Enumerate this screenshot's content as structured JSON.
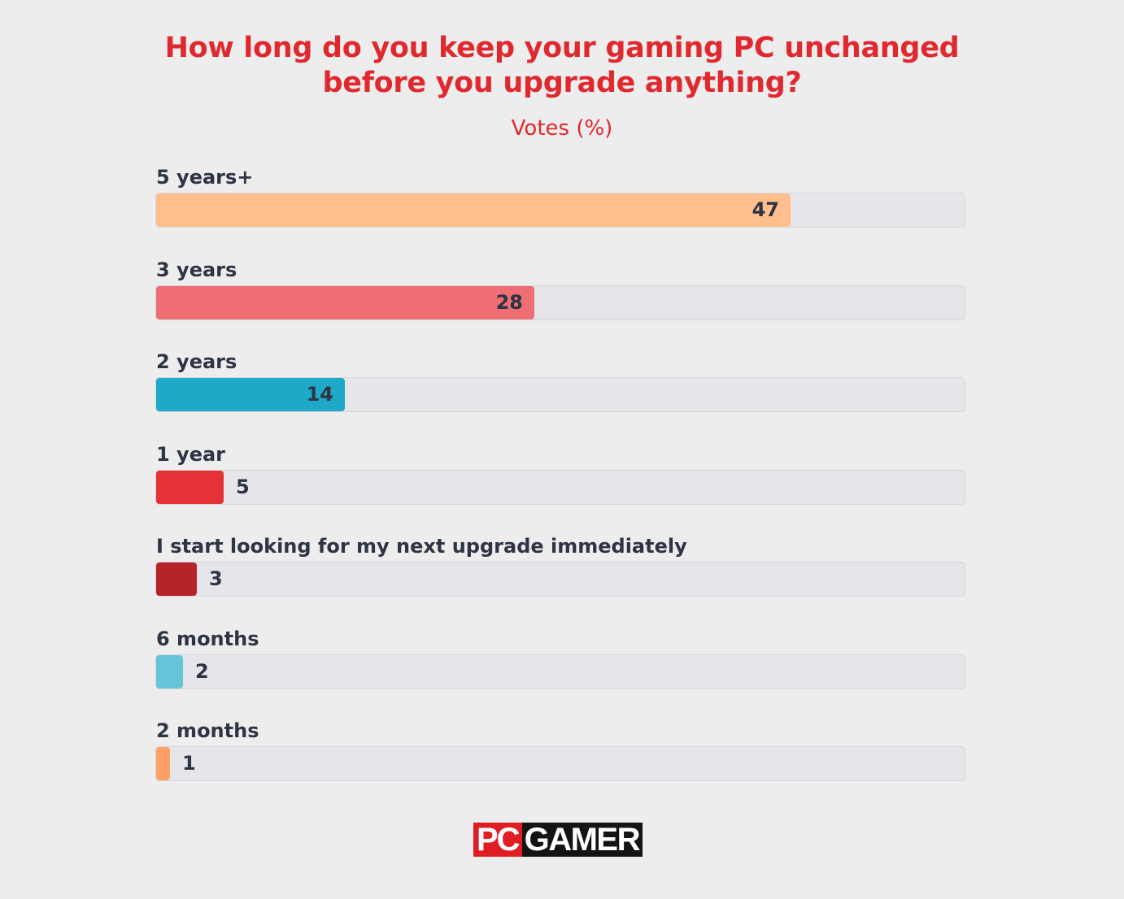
{
  "title_lines": [
    "How long do you keep your gaming PC unchanged",
    "before you upgrade anything?"
  ],
  "subtitle": "Votes (%)",
  "logo": {
    "part1": "PC",
    "part2": "GAMER"
  },
  "colors": {
    "title": "#e0282f",
    "label": "#2d3444",
    "track": "#e6e6ea",
    "background": "#ededed"
  },
  "chart_data": {
    "type": "bar",
    "orientation": "horizontal",
    "title": "How long do you keep your gaming PC unchanged before you upgrade anything?",
    "subtitle": "Votes (%)",
    "xlim": [
      0,
      60
    ],
    "categories": [
      "5 years+",
      "3 years",
      "2 years",
      "1 year",
      "I start looking for my next upgrade immediately",
      "6 months",
      "2 months"
    ],
    "values": [
      47,
      28,
      14,
      5,
      3,
      2,
      1
    ],
    "bar_colors": [
      "#ffbe8d",
      "#ee6e74",
      "#1ea9c9",
      "#e53237",
      "#b42429",
      "#64c5d9",
      "#ffa165"
    ]
  }
}
